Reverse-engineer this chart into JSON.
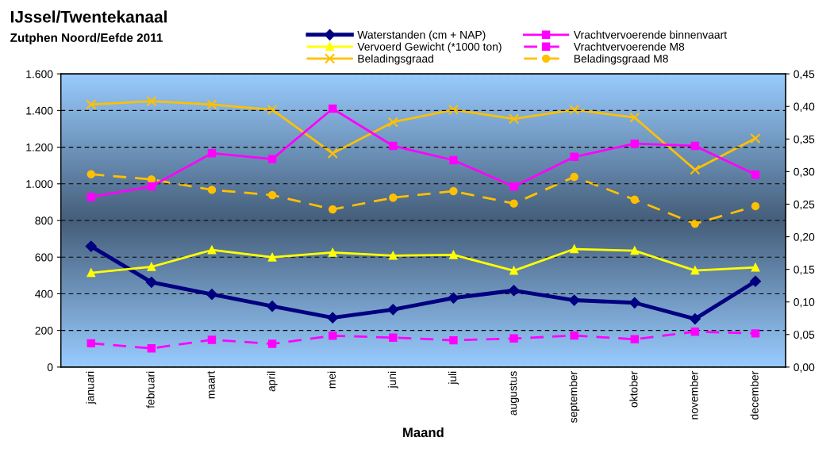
{
  "chart_data": {
    "type": "line",
    "title": "IJssel/Twentekanaal",
    "subtitle": "Zutphen Noord/Eefde 2011",
    "xlabel": "Maand",
    "categories": [
      "januari",
      "februari",
      "maart",
      "april",
      "mei",
      "juni",
      "juli",
      "augustus",
      "september",
      "oktober",
      "november",
      "december"
    ],
    "series": [
      {
        "name": "Waterstanden (cm + NAP)",
        "color": "#000080",
        "marker": "diamond",
        "line_style": "solid",
        "values": [
          659,
          463,
          397,
          332,
          269,
          314,
          377,
          418,
          365,
          351,
          263,
          468
        ]
      },
      {
        "name": "Vrachtvervoerende binnenvaart",
        "color": "#ff00ff",
        "marker": "square",
        "line_style": "solid",
        "values": [
          928,
          986,
          1167,
          1135,
          1410,
          1207,
          1129,
          985,
          1147,
          1219,
          1207,
          1050
        ]
      },
      {
        "name": "Vervoerd Gewicht (*1000 ton)",
        "color": "#ffff00",
        "marker": "triangle",
        "line_style": "solid",
        "values": [
          514,
          547,
          639,
          599,
          625,
          608,
          612,
          526,
          644,
          635,
          527,
          544
        ]
      },
      {
        "name": "Vrachtvervoerende M8",
        "color": "#ff00ff",
        "marker": "square",
        "line_style": "dashed",
        "values": [
          130,
          102,
          149,
          127,
          171,
          161,
          146,
          156,
          172,
          152,
          193,
          184
        ]
      },
      {
        "name": "Beladingsgraad",
        "color": "#ffc000",
        "marker": "cross",
        "line_style": "solid",
        "axis": "y2",
        "values": [
          0.403,
          0.408,
          0.403,
          0.395,
          0.328,
          0.376,
          0.395,
          0.381,
          0.395,
          0.383,
          0.303,
          0.351
        ]
      },
      {
        "name": "Beladingsgraad M8",
        "color": "#ffc000",
        "marker": "circle",
        "line_style": "dashed",
        "axis": "y2",
        "values": [
          0.296,
          0.288,
          0.272,
          0.264,
          0.242,
          0.26,
          0.27,
          0.251,
          0.292,
          0.257,
          0.22,
          0.247
        ]
      }
    ],
    "ylim": [
      0,
      1600
    ],
    "yticks": [
      0,
      200,
      400,
      600,
      800,
      {
        "value": 1000,
        "label": "1.000"
      },
      {
        "value": 1200,
        "label": "1.200"
      },
      {
        "value": 1400,
        "label": "1.400"
      },
      {
        "value": 1600,
        "label": "1.600"
      }
    ],
    "y2lim": [
      0,
      0.45
    ],
    "y2ticks": [
      {
        "value": 0,
        "label": "0,00"
      },
      {
        "value": 0.05,
        "label": "0,05"
      },
      {
        "value": 0.1,
        "label": "0,10"
      },
      {
        "value": 0.15,
        "label": "0,15"
      },
      {
        "value": 0.2,
        "label": "0,20"
      },
      {
        "value": 0.25,
        "label": "0,25"
      },
      {
        "value": 0.3,
        "label": "0,30"
      },
      {
        "value": 0.35,
        "label": "0,35"
      },
      {
        "value": 0.4,
        "label": "0,40"
      },
      {
        "value": 0.45,
        "label": "0,45"
      }
    ],
    "grid": "y",
    "legend": "top"
  }
}
